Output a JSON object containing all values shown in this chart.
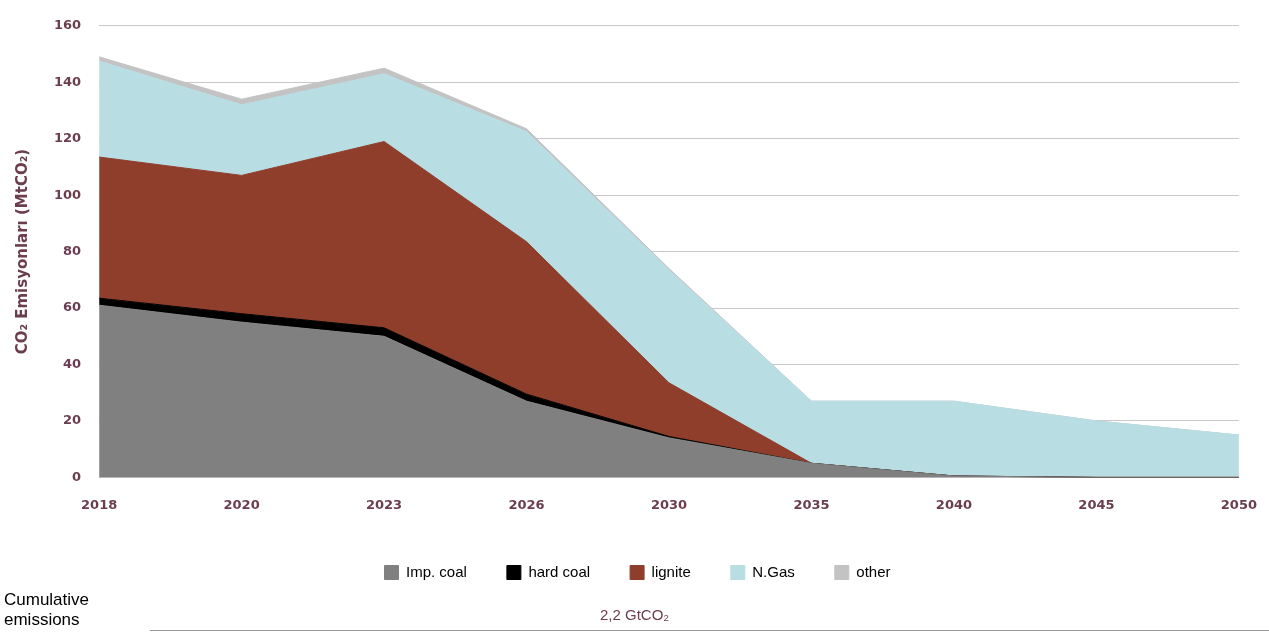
{
  "chart_data": {
    "type": "area",
    "stacked": true,
    "ylabel": "CO₂ Emisyonları (MtCO₂)",
    "categories": [
      "2018",
      "2020",
      "2023",
      "2026",
      "2030",
      "2035",
      "2040",
      "2045",
      "2050"
    ],
    "series": [
      {
        "name": "Imp. coal",
        "color": "#808080",
        "values": [
          61,
          55,
          50,
          27,
          14,
          5,
          0.5,
          0,
          0
        ]
      },
      {
        "name": "hard coal",
        "color": "#000000",
        "values": [
          2.5,
          3,
          3,
          2.5,
          0.5,
          0,
          0,
          0,
          0
        ]
      },
      {
        "name": "lignite",
        "color": "#8f3e2c",
        "values": [
          50,
          49,
          66,
          54,
          19,
          0,
          0,
          0,
          0
        ]
      },
      {
        "name": "N.Gas",
        "color": "#b8dde3",
        "values": [
          34,
          25,
          24,
          39,
          40,
          22,
          26.5,
          20,
          15
        ]
      },
      {
        "name": "other",
        "color": "#c3c3c3",
        "values": [
          1.5,
          2,
          2,
          1,
          0.5,
          0,
          0,
          0,
          0
        ]
      }
    ],
    "ylim": [
      0,
      160
    ],
    "yticks": [
      0,
      20,
      40,
      60,
      80,
      100,
      120,
      140,
      160
    ],
    "grid": "y",
    "legend": "bottom",
    "marker": "none",
    "annotations": [
      "2,2 GtCO₂",
      "Cumulative emissions"
    ]
  }
}
